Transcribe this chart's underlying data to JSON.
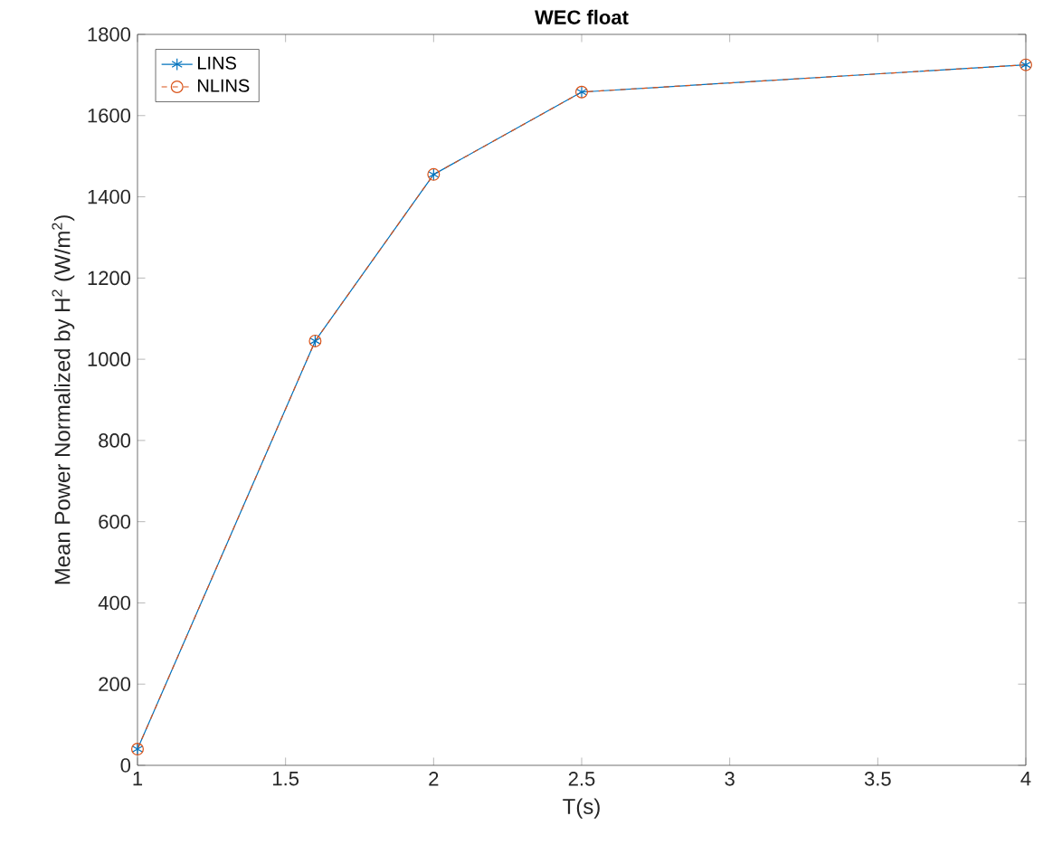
{
  "chart_data": {
    "type": "line",
    "title": "WEC float",
    "xlabel": "T(s)",
    "ylabel": "Mean Power Normalized by H$^{2}$ (W/m$^{2}$)",
    "x": [
      1,
      1.6,
      2,
      2.5,
      4
    ],
    "series": [
      {
        "name": "LINS",
        "color": "#0072bd",
        "values": [
          40,
          1045,
          1455,
          1658,
          1725
        ],
        "marker": "cross",
        "line_style": "solid"
      },
      {
        "name": "NLINS",
        "color": "#d95319",
        "values": [
          40,
          1045,
          1455,
          1658,
          1725
        ],
        "marker": "circle",
        "line_style": "dashed"
      }
    ],
    "xlim": [
      1,
      4
    ],
    "xticks": [
      1,
      1.5,
      2,
      2.5,
      3,
      3.5,
      4
    ],
    "ylim": [
      0,
      1800
    ],
    "yticks": [
      0,
      200,
      400,
      600,
      800,
      1000,
      1200,
      1400,
      1600,
      1800
    ],
    "grid": false,
    "legend": "top left"
  }
}
